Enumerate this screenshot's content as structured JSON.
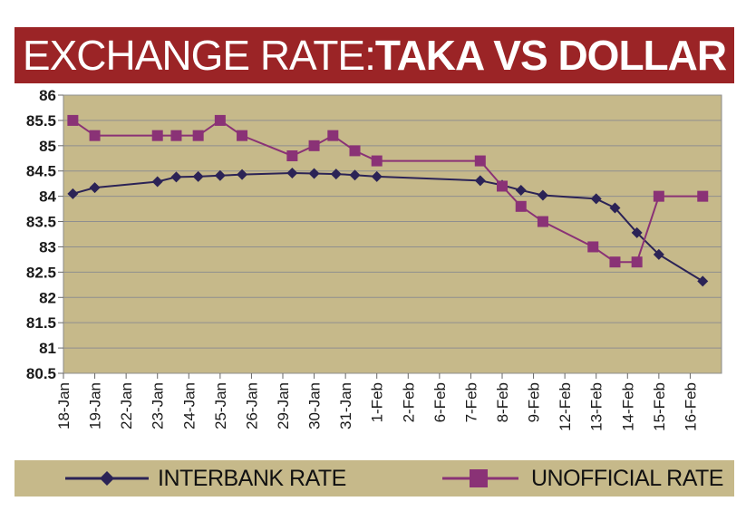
{
  "title": {
    "part1": "EXCHANGE RATE: ",
    "part2": "TAKA VS DOLLAR"
  },
  "colors": {
    "title_bg": "#9b2426",
    "plot_bg": "#c6b98a",
    "interbank": "#2b2356",
    "unofficial": "#8a3276"
  },
  "chart_data": {
    "type": "line",
    "title": "EXCHANGE RATE: TAKA VS DOLLAR",
    "xlabel": "",
    "ylabel": "",
    "ylim": [
      80.5,
      86
    ],
    "y_ticks": [
      "80.5",
      "81",
      "81.5",
      "82",
      "82.5",
      "83",
      "83.5",
      "84",
      "84.5",
      "85",
      "85.5",
      "86"
    ],
    "y_tick_values": [
      80.5,
      81,
      81.5,
      82,
      82.5,
      83,
      83.5,
      84,
      84.5,
      85,
      85.5,
      86
    ],
    "x_range": [
      0,
      21
    ],
    "categories": [
      "18-Jan",
      "19-Jan",
      "22-Jan",
      "23-Jan",
      "24-Jan",
      "25-Jan",
      "26-Jan",
      "29-Jan",
      "30-Jan",
      "31-Jan",
      "1-Feb",
      "2-Feb",
      "6-Feb",
      "7-Feb",
      "8-Feb",
      "9-Feb",
      "12-Feb",
      "13-Feb",
      "14-Feb",
      "15-Feb",
      "16-Feb"
    ],
    "grid": true,
    "series": [
      {
        "name": "INTERBANK RATE",
        "marker": "diamond",
        "x": [
          0.3,
          1.0,
          3.0,
          3.6,
          4.3,
          5.0,
          5.7,
          7.3,
          8.0,
          8.7,
          9.3,
          10.0,
          13.3,
          14.0,
          14.6,
          15.3,
          17.0,
          17.6,
          18.3,
          19.0,
          20.4
        ],
        "values": [
          84.05,
          84.17,
          84.29,
          84.38,
          84.39,
          84.41,
          84.43,
          84.46,
          84.45,
          84.44,
          84.42,
          84.39,
          84.31,
          84.22,
          84.12,
          84.02,
          83.95,
          83.77,
          83.28,
          82.85,
          82.32
        ]
      },
      {
        "name": "UNOFFICIAL RATE",
        "marker": "square",
        "x": [
          0.3,
          1.0,
          3.0,
          3.6,
          4.3,
          5.0,
          5.7,
          7.3,
          8.0,
          8.6,
          9.3,
          10.0,
          13.3,
          14.0,
          14.6,
          15.3,
          16.9,
          17.6,
          18.3,
          19.0,
          20.4
        ],
        "values": [
          85.5,
          85.2,
          85.2,
          85.2,
          85.2,
          85.5,
          85.2,
          84.8,
          85.0,
          85.2,
          84.9,
          84.7,
          84.7,
          84.2,
          83.8,
          83.5,
          83.0,
          82.7,
          82.7,
          84.0,
          84.0
        ]
      }
    ]
  }
}
